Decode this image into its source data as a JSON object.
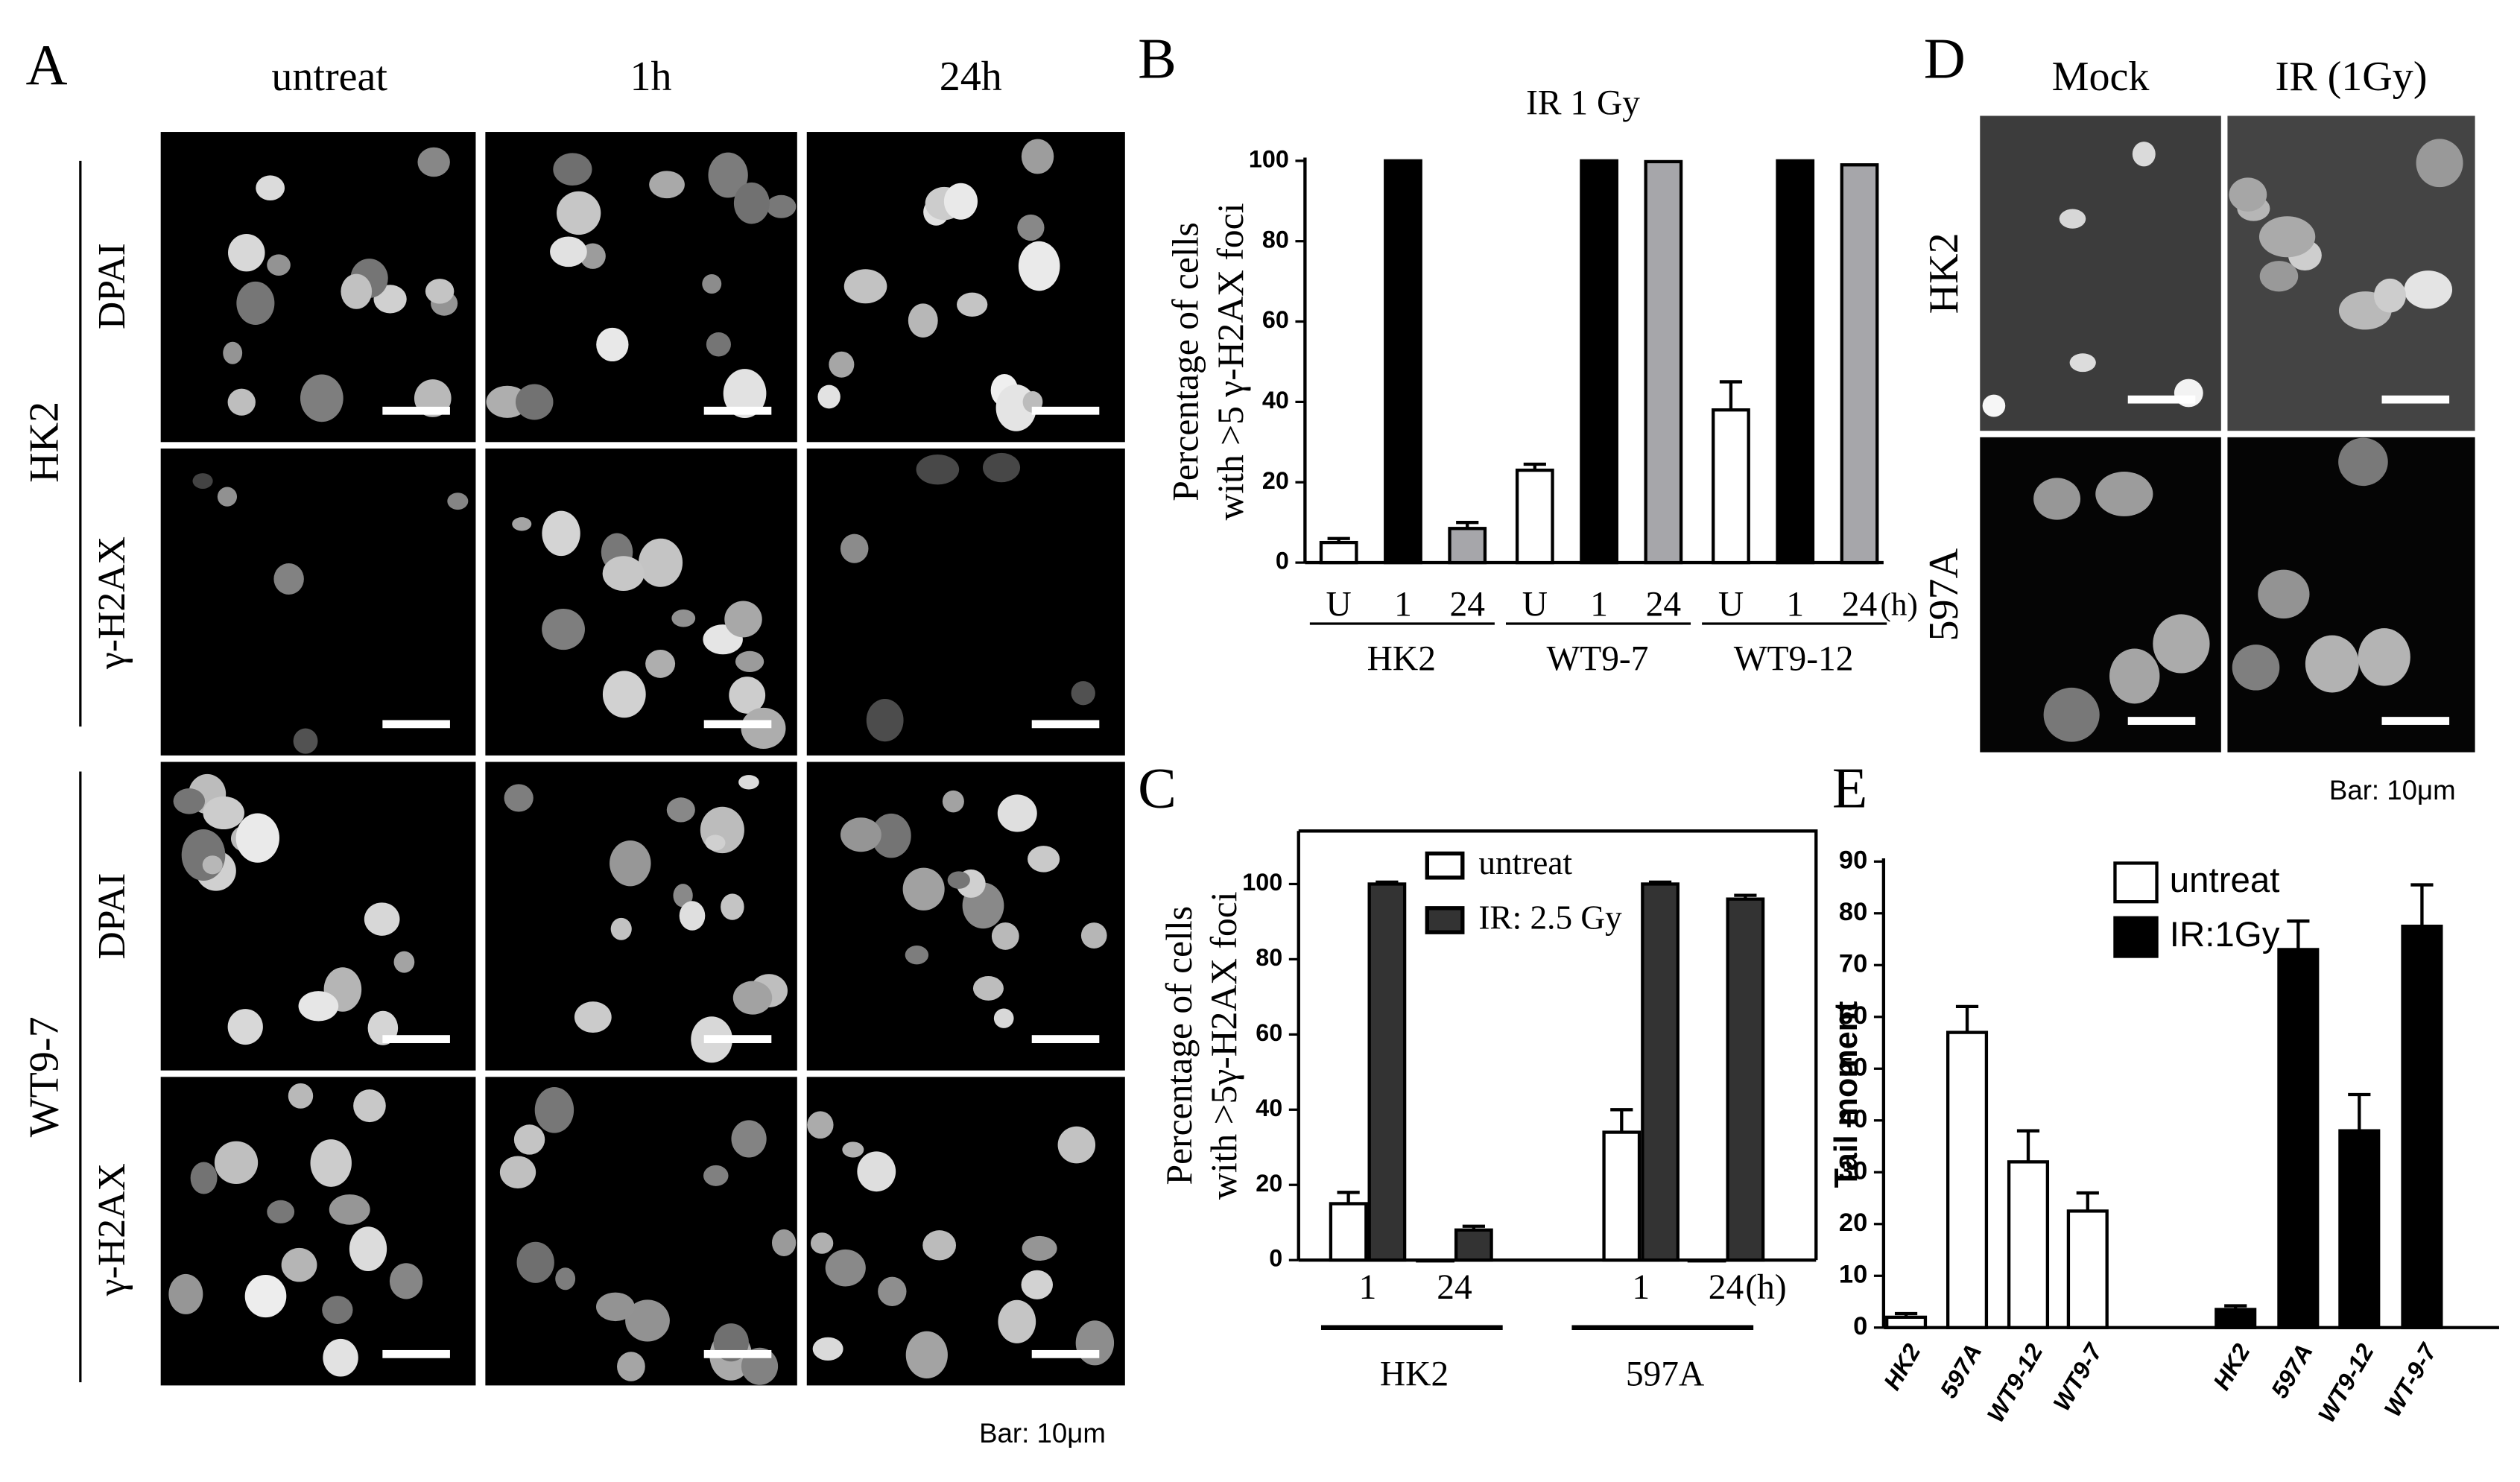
{
  "panel_labels": [
    "A",
    "B",
    "C",
    "D",
    "E"
  ],
  "panel_a": {
    "columns": [
      "untreat",
      "1h",
      "24h"
    ],
    "cell_lines": [
      "HK2",
      "WT9-7"
    ],
    "stains": [
      "DPAI",
      "γ-H2AX"
    ],
    "scale_note": "Bar: 10μm"
  },
  "panel_d": {
    "columns": [
      "Mock",
      "IR (1Gy)"
    ],
    "rows": [
      "HK2",
      "597A"
    ],
    "scale_note": "Bar: 10μm"
  },
  "chart_data": [
    {
      "type": "bar",
      "title": "IR 1 Gy",
      "ylabel": [
        "Percentage of cells",
        "with >5 γ-H2AX foci"
      ],
      "groups": [
        "HK2",
        "WT9-7",
        "WT9-12"
      ],
      "categories": [
        "U",
        "1",
        "24"
      ],
      "x_unit": "(h)",
      "series": [
        {
          "color": "#ffffff",
          "values": [
            5,
            23,
            38
          ],
          "errors": [
            1,
            1.5,
            7
          ]
        },
        {
          "color": "#000000",
          "values": [
            100,
            100,
            100
          ],
          "errors": [
            0,
            0,
            0
          ]
        },
        {
          "color": "#a6a6aa",
          "values": [
            8.5,
            99.8,
            99
          ],
          "errors": [
            1.5,
            0,
            0
          ]
        }
      ],
      "ylim": [
        0,
        100
      ],
      "yticks": [
        0,
        20,
        40,
        60,
        80,
        100
      ]
    },
    {
      "type": "bar",
      "ylabel": [
        "Percentage of cells",
        "with >5γ-H2AX foci"
      ],
      "groups": [
        "HK2",
        "597A"
      ],
      "categories": [
        "1",
        "24",
        "1",
        "24"
      ],
      "x_unit": "(h)",
      "series": [
        {
          "name": "untreat",
          "color": "#ffffff",
          "values": [
            15,
            0,
            34,
            0
          ],
          "errors": [
            3,
            0,
            6,
            0
          ]
        },
        {
          "name": "IR: 2.5 Gy",
          "color": "#333333",
          "values": [
            100,
            8,
            100,
            96
          ],
          "errors": [
            0.5,
            1,
            0.5,
            1
          ]
        }
      ],
      "ylim": [
        0,
        100
      ],
      "yticks": [
        0,
        20,
        40,
        60,
        80,
        100
      ]
    },
    {
      "type": "bar",
      "ylabel": "Tail moment",
      "categories": [
        "HK2",
        "597A",
        "WT9-12",
        "WT9-7",
        "HK2",
        "597A",
        "WT9-12",
        "WT-9-7"
      ],
      "series": [
        {
          "name": "untreat",
          "color": "#ffffff",
          "values": [
            2,
            57,
            32,
            22.5,
            null,
            null,
            null,
            null
          ],
          "errors": [
            0.7,
            5,
            6,
            3.5,
            null,
            null,
            null,
            null
          ]
        },
        {
          "name": "IR:1Gy",
          "color": "#000000",
          "values": [
            null,
            null,
            null,
            null,
            3.5,
            73,
            38,
            77.5
          ],
          "errors": [
            null,
            null,
            null,
            null,
            0.7,
            5.5,
            7,
            8
          ]
        }
      ],
      "ylim": [
        0,
        90
      ],
      "yticks": [
        0,
        10,
        20,
        30,
        40,
        50,
        60,
        70,
        80,
        90
      ]
    }
  ]
}
